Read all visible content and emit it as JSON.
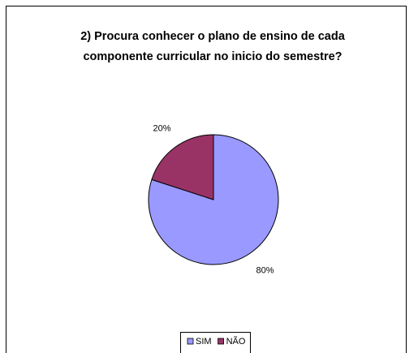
{
  "chart_data": {
    "type": "pie",
    "title": [
      "2) Procura conhecer o plano de ensino de cada",
      "componente curricular no inicio do semestre?"
    ],
    "categories": [
      "SIM",
      "NÃO"
    ],
    "values": [
      80,
      20
    ],
    "value_labels": [
      "80%",
      "20%"
    ],
    "colors": [
      "#9999ff",
      "#993366"
    ],
    "legend": "bottom"
  }
}
